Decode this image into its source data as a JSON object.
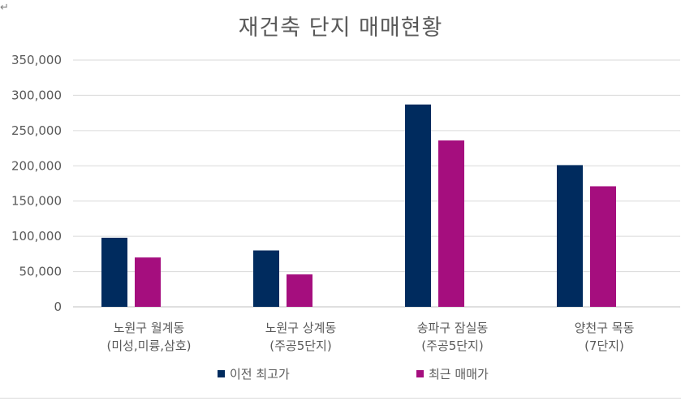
{
  "page": {
    "return_mark": "↵"
  },
  "chart_data": {
    "type": "bar",
    "title": "재건축 단지 매매현황",
    "xlabel": "",
    "ylabel": "",
    "ylim": [
      0,
      350000
    ],
    "yticks": [
      0,
      50000,
      100000,
      150000,
      200000,
      250000,
      300000,
      350000
    ],
    "ytick_labels": [
      "0",
      "50,000",
      "100,000",
      "150,000",
      "200,000",
      "250,000",
      "300,000",
      "350,000"
    ],
    "grid": true,
    "legend_position": "bottom",
    "categories": [
      [
        "노원구 월계동",
        "(미성,미륭,삼호)"
      ],
      [
        "노원구 상계동",
        "(주공5단지)"
      ],
      [
        "송파구 잠실동",
        "(주공5단지)"
      ],
      [
        "양천구 목동",
        "(7단지)"
      ]
    ],
    "series": [
      {
        "name": "이전 최고가",
        "color": "#002b5e",
        "values": [
          98000,
          80000,
          287000,
          201000
        ]
      },
      {
        "name": "최근 매매가",
        "color": "#a50e7e",
        "values": [
          70000,
          46000,
          236000,
          171000
        ]
      }
    ]
  }
}
